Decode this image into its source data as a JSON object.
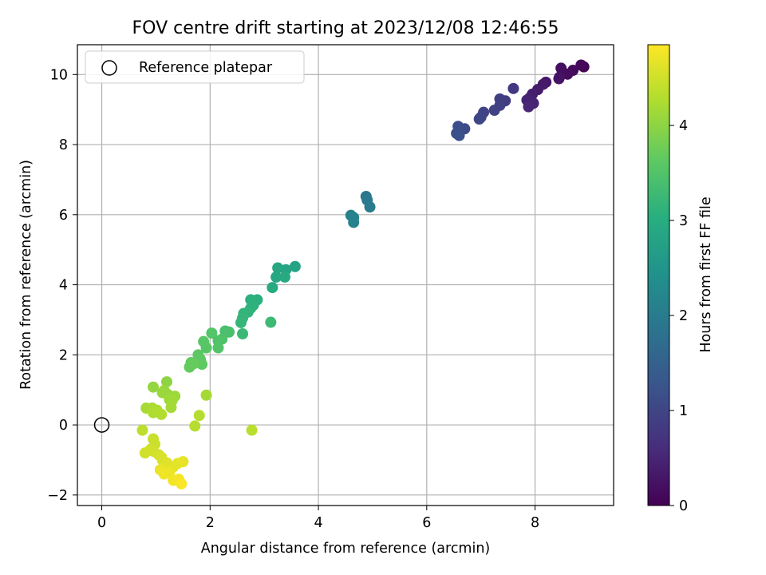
{
  "chart_data": {
    "type": "scatter",
    "title": "FOV centre drift starting at 2023/12/08 12:46:55",
    "xlabel": "Angular distance from reference (arcmin)",
    "ylabel": "Rotation from reference (arcmin)",
    "xlim": [
      -0.45,
      9.45
    ],
    "ylim": [
      -2.3,
      10.85
    ],
    "xticks": [
      0,
      2,
      4,
      6,
      8
    ],
    "yticks": [
      -2,
      0,
      2,
      4,
      6,
      8,
      10
    ],
    "grid": true,
    "legend": {
      "position": "top-left",
      "entries": [
        "Reference platepar"
      ]
    },
    "reference_point": {
      "x": 0,
      "y": 0
    },
    "colorbar": {
      "label": "Hours from first FF file",
      "range": [
        0,
        4.85
      ],
      "ticks": [
        0,
        1,
        2,
        3,
        4
      ],
      "colormap": "viridis"
    },
    "series": [
      {
        "points": [
          {
            "x": 8.9,
            "y": 10.22,
            "c": 0.05
          },
          {
            "x": 8.85,
            "y": 10.27,
            "c": 0.08
          },
          {
            "x": 8.7,
            "y": 10.12,
            "c": 0.12
          },
          {
            "x": 8.6,
            "y": 10.01,
            "c": 0.15
          },
          {
            "x": 8.48,
            "y": 10.18,
            "c": 0.18
          },
          {
            "x": 8.45,
            "y": 9.92,
            "c": 0.22
          },
          {
            "x": 8.44,
            "y": 9.88,
            "c": 0.25
          },
          {
            "x": 8.2,
            "y": 9.78,
            "c": 0.3
          },
          {
            "x": 8.15,
            "y": 9.72,
            "c": 0.33
          },
          {
            "x": 8.05,
            "y": 9.57,
            "c": 0.36
          },
          {
            "x": 7.95,
            "y": 9.44,
            "c": 0.4
          },
          {
            "x": 7.9,
            "y": 9.33,
            "c": 0.43
          },
          {
            "x": 7.85,
            "y": 9.27,
            "c": 0.47
          },
          {
            "x": 7.97,
            "y": 9.18,
            "c": 0.5
          },
          {
            "x": 7.88,
            "y": 9.08,
            "c": 0.53
          },
          {
            "x": 7.6,
            "y": 9.6,
            "c": 0.8
          },
          {
            "x": 7.45,
            "y": 9.25,
            "c": 0.85
          },
          {
            "x": 7.35,
            "y": 9.3,
            "c": 0.88
          },
          {
            "x": 7.35,
            "y": 9.12,
            "c": 0.92
          },
          {
            "x": 7.25,
            "y": 8.98,
            "c": 0.95
          },
          {
            "x": 7.05,
            "y": 8.92,
            "c": 0.98
          },
          {
            "x": 6.97,
            "y": 8.73,
            "c": 1.0
          },
          {
            "x": 7.0,
            "y": 8.78,
            "c": 1.02
          },
          {
            "x": 6.7,
            "y": 8.45,
            "c": 1.1
          },
          {
            "x": 6.58,
            "y": 8.52,
            "c": 1.15
          },
          {
            "x": 6.55,
            "y": 8.32,
            "c": 1.18
          },
          {
            "x": 6.6,
            "y": 8.26,
            "c": 1.2
          },
          {
            "x": 4.88,
            "y": 6.52,
            "c": 1.9
          },
          {
            "x": 4.9,
            "y": 6.42,
            "c": 1.95
          },
          {
            "x": 4.95,
            "y": 6.22,
            "c": 2.0
          },
          {
            "x": 4.6,
            "y": 5.98,
            "c": 2.1
          },
          {
            "x": 4.65,
            "y": 5.92,
            "c": 2.13
          },
          {
            "x": 4.65,
            "y": 5.78,
            "c": 2.16
          },
          {
            "x": 3.57,
            "y": 4.52,
            "c": 2.8
          },
          {
            "x": 3.4,
            "y": 4.43,
            "c": 2.83
          },
          {
            "x": 3.25,
            "y": 4.48,
            "c": 2.86
          },
          {
            "x": 3.22,
            "y": 4.22,
            "c": 2.89
          },
          {
            "x": 3.38,
            "y": 4.22,
            "c": 2.92
          },
          {
            "x": 3.15,
            "y": 3.92,
            "c": 2.95
          },
          {
            "x": 2.87,
            "y": 3.57,
            "c": 3.05
          },
          {
            "x": 2.75,
            "y": 3.57,
            "c": 3.08
          },
          {
            "x": 2.8,
            "y": 3.42,
            "c": 3.1
          },
          {
            "x": 2.75,
            "y": 3.33,
            "c": 3.12
          },
          {
            "x": 2.7,
            "y": 3.22,
            "c": 3.14
          },
          {
            "x": 2.62,
            "y": 3.18,
            "c": 3.16
          },
          {
            "x": 2.6,
            "y": 3.05,
            "c": 3.18
          },
          {
            "x": 2.57,
            "y": 2.92,
            "c": 3.2
          },
          {
            "x": 2.6,
            "y": 2.6,
            "c": 3.25
          },
          {
            "x": 3.12,
            "y": 2.93,
            "c": 3.28
          },
          {
            "x": 2.35,
            "y": 2.65,
            "c": 3.4
          },
          {
            "x": 2.28,
            "y": 2.68,
            "c": 3.42
          },
          {
            "x": 2.22,
            "y": 2.45,
            "c": 3.45
          },
          {
            "x": 2.15,
            "y": 2.4,
            "c": 3.47
          },
          {
            "x": 2.15,
            "y": 2.2,
            "c": 3.5
          },
          {
            "x": 2.03,
            "y": 2.62,
            "c": 3.52
          },
          {
            "x": 1.93,
            "y": 2.2,
            "c": 3.55
          },
          {
            "x": 1.88,
            "y": 2.38,
            "c": 3.57
          },
          {
            "x": 1.78,
            "y": 2.0,
            "c": 3.6
          },
          {
            "x": 1.82,
            "y": 1.87,
            "c": 3.62
          },
          {
            "x": 1.85,
            "y": 1.73,
            "c": 3.64
          },
          {
            "x": 1.65,
            "y": 1.78,
            "c": 3.66
          },
          {
            "x": 1.62,
            "y": 1.65,
            "c": 3.68
          },
          {
            "x": 1.7,
            "y": 1.75,
            "c": 3.7
          },
          {
            "x": 1.2,
            "y": 1.23,
            "c": 4.0
          },
          {
            "x": 0.95,
            "y": 1.08,
            "c": 4.05
          },
          {
            "x": 1.15,
            "y": 0.98,
            "c": 4.07
          },
          {
            "x": 1.22,
            "y": 0.87,
            "c": 4.09
          },
          {
            "x": 1.12,
            "y": 0.92,
            "c": 4.1
          },
          {
            "x": 1.35,
            "y": 0.82,
            "c": 4.12
          },
          {
            "x": 1.25,
            "y": 0.72,
            "c": 4.14
          },
          {
            "x": 1.3,
            "y": 0.7,
            "c": 4.15
          },
          {
            "x": 1.28,
            "y": 0.5,
            "c": 4.17
          },
          {
            "x": 1.93,
            "y": 0.85,
            "c": 4.18
          },
          {
            "x": 0.82,
            "y": 0.48,
            "c": 4.2
          },
          {
            "x": 0.93,
            "y": 0.48,
            "c": 4.22
          },
          {
            "x": 1.02,
            "y": 0.42,
            "c": 4.24
          },
          {
            "x": 0.95,
            "y": 0.35,
            "c": 4.26
          },
          {
            "x": 1.1,
            "y": 0.3,
            "c": 4.28
          },
          {
            "x": 1.8,
            "y": 0.27,
            "c": 4.3
          },
          {
            "x": 1.72,
            "y": -0.03,
            "c": 4.32
          },
          {
            "x": 2.77,
            "y": -0.15,
            "c": 4.34
          },
          {
            "x": 0.75,
            "y": -0.15,
            "c": 4.36
          },
          {
            "x": 0.95,
            "y": -0.4,
            "c": 4.45
          },
          {
            "x": 0.98,
            "y": -0.55,
            "c": 4.47
          },
          {
            "x": 0.9,
            "y": -0.7,
            "c": 4.49
          },
          {
            "x": 0.95,
            "y": -0.75,
            "c": 4.5
          },
          {
            "x": 0.8,
            "y": -0.8,
            "c": 4.52
          },
          {
            "x": 1.05,
            "y": -0.85,
            "c": 4.54
          },
          {
            "x": 1.1,
            "y": -0.92,
            "c": 4.56
          },
          {
            "x": 1.12,
            "y": -1.0,
            "c": 4.58
          },
          {
            "x": 1.2,
            "y": -1.08,
            "c": 4.6
          },
          {
            "x": 1.18,
            "y": -1.15,
            "c": 4.62
          },
          {
            "x": 1.32,
            "y": -1.2,
            "c": 4.64
          },
          {
            "x": 1.4,
            "y": -1.1,
            "c": 4.66
          },
          {
            "x": 1.5,
            "y": -1.05,
            "c": 4.68
          },
          {
            "x": 1.08,
            "y": -1.28,
            "c": 4.7
          },
          {
            "x": 1.25,
            "y": -1.35,
            "c": 4.72
          },
          {
            "x": 1.15,
            "y": -1.4,
            "c": 4.74
          },
          {
            "x": 1.32,
            "y": -1.58,
            "c": 4.76
          },
          {
            "x": 1.42,
            "y": -1.55,
            "c": 4.78
          },
          {
            "x": 1.47,
            "y": -1.68,
            "c": 4.82
          }
        ]
      }
    ]
  }
}
